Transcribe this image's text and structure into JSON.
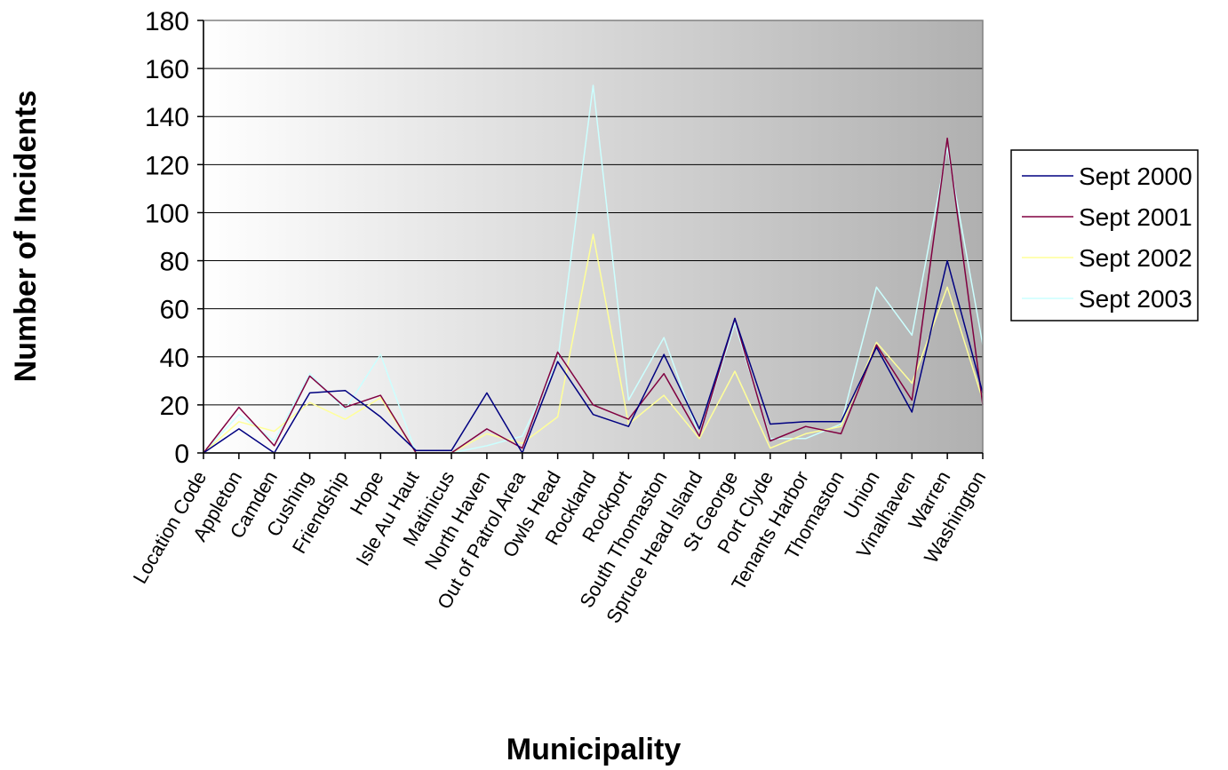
{
  "chart_data": {
    "type": "line",
    "title": "",
    "xlabel": "Municipality",
    "ylabel": "Number of Incidents",
    "ylim": [
      0,
      180
    ],
    "yticks": [
      0,
      20,
      40,
      60,
      80,
      100,
      120,
      140,
      160,
      180
    ],
    "grid": true,
    "legend_position": "right",
    "categories": [
      "Location Code",
      "Appleton",
      "Camden",
      "Cushing",
      "Friendship",
      "Hope",
      "Isle Au Haut",
      "Matinicus",
      "North Haven",
      "Out of Patrol Area",
      "Owls Head",
      "Rockland",
      "Rockport",
      "South Thomaston",
      "Spruce Head Island",
      "St George",
      "Port Clyde",
      "Tenants Harbor",
      "Thomaston",
      "Union",
      "Vinalhaven",
      "Warren",
      "Washington"
    ],
    "series": [
      {
        "name": "Sept 2000",
        "color": "#000080",
        "values": [
          0,
          10,
          0,
          25,
          26,
          15,
          1,
          1,
          25,
          0,
          38,
          16,
          11,
          41,
          10,
          56,
          12,
          13,
          13,
          44,
          17,
          80,
          25
        ]
      },
      {
        "name": "Sept 2001",
        "color": "#800040",
        "values": [
          0,
          19,
          3,
          32,
          19,
          24,
          0,
          0,
          10,
          2,
          42,
          20,
          14,
          33,
          7,
          56,
          5,
          11,
          8,
          45,
          22,
          131,
          20
        ]
      },
      {
        "name": "Sept 2002",
        "color": "#ffff99",
        "values": [
          0,
          13,
          9,
          21,
          14,
          23,
          0,
          0,
          8,
          4,
          15,
          91,
          12,
          24,
          6,
          34,
          2,
          8,
          11,
          46,
          29,
          69,
          22
        ]
      },
      {
        "name": "Sept 2003",
        "color": "#ccffff",
        "values": [
          0,
          16,
          5,
          33,
          18,
          41,
          0,
          0,
          3,
          7,
          38,
          153,
          22,
          48,
          7,
          54,
          6,
          6,
          12,
          69,
          49,
          127,
          45
        ]
      }
    ]
  }
}
